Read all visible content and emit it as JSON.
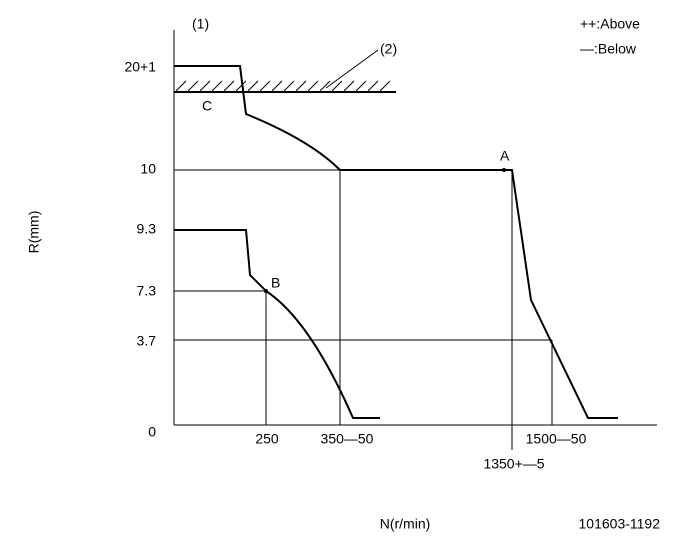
{
  "header": {
    "ref": "(1)",
    "legend_above": "++:Above",
    "legend_below": "—:Below",
    "part": "(2)",
    "drawing_no": "101603-1192"
  },
  "y_labels": [
    "20+1",
    "10",
    "9.3",
    "7.3",
    "3.7",
    "0"
  ],
  "x_labels": [
    "250",
    "350—50",
    "1500—50",
    "1350+—5"
  ],
  "points": {
    "a": "A",
    "b": "B",
    "c": "C"
  },
  "axes": {
    "y_title": "R(mm)",
    "x_title": "N(r/min)"
  }
}
